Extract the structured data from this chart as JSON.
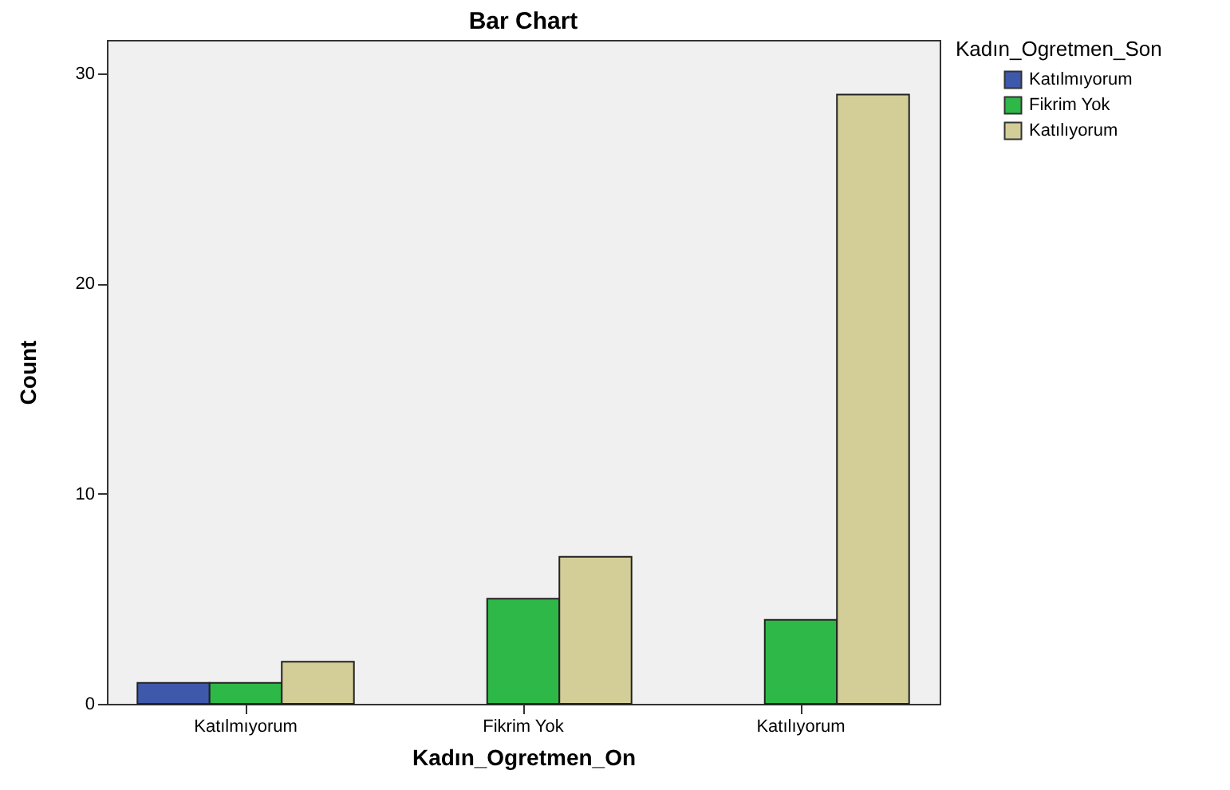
{
  "chart_data": {
    "type": "bar",
    "title": "Bar Chart",
    "xlabel": "Kadın_Ogretmen_On",
    "ylabel": "Count",
    "legend_title": "Kadın_Ogretmen_Son",
    "categories": [
      "Katılmıyorum",
      "Fikrim Yok",
      "Katılıyorum"
    ],
    "series": [
      {
        "name": "Katılmıyorum",
        "color": "#3e58ac",
        "values": [
          1,
          null,
          null
        ]
      },
      {
        "name": "Fikrim Yok",
        "color": "#2eb848",
        "values": [
          1,
          5,
          4
        ]
      },
      {
        "name": "Katılıyorum",
        "color": "#d3ce97",
        "values": [
          2,
          7,
          29
        ]
      }
    ],
    "ylim": [
      0,
      31.6
    ],
    "yticks": [
      0,
      10,
      20,
      30
    ],
    "grid": false,
    "legend": "top right"
  }
}
